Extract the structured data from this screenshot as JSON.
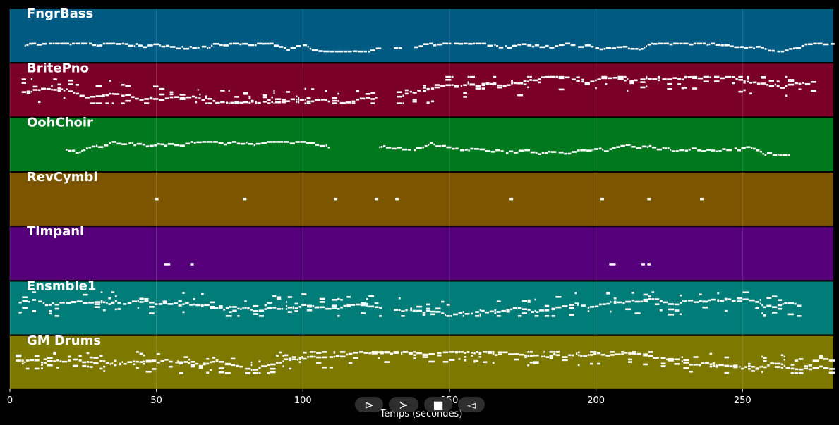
{
  "chart_data": {
    "type": "piano-roll",
    "title": "",
    "xlabel": "Temps (secondes)",
    "ylabel": "",
    "xlim": [
      0,
      281
    ],
    "xticks": [
      0,
      50,
      100,
      150,
      200,
      250
    ],
    "grid": true,
    "tracks": [
      {
        "name": "FngrBass",
        "color": "#005a82",
        "active": [
          [
            5,
            126
          ],
          [
            131,
            133
          ],
          [
            138,
            281
          ]
        ],
        "density": 0.85,
        "pitch_range": [
          0.2,
          0.35
        ],
        "density_note": "sparse single notes"
      },
      {
        "name": "BritePno",
        "color": "#7a0028",
        "active": [
          [
            4,
            125
          ],
          [
            132,
            274
          ]
        ],
        "density": 1.0,
        "pitch_range": [
          0.25,
          0.75
        ]
      },
      {
        "name": "OohChoir",
        "color": "#00781e",
        "active": [
          [
            19,
            109
          ],
          [
            126,
            266
          ]
        ],
        "density": 0.9,
        "pitch_range": [
          0.3,
          0.55
        ]
      },
      {
        "name": "RevCymbl",
        "color": "#7d5500",
        "hits": [
          50,
          80,
          111,
          125,
          132,
          171,
          202,
          218,
          236
        ],
        "pitch": 0.5
      },
      {
        "name": "Timpani",
        "color": "#55007a",
        "hits": [
          53,
          54,
          62,
          205,
          206,
          216,
          218
        ],
        "pitch": 0.3
      },
      {
        "name": "Ensmble1",
        "color": "#007d78",
        "active": [
          [
            3,
            126
          ],
          [
            131,
            270
          ]
        ],
        "density": 1.0,
        "pitch_range": [
          0.35,
          0.8
        ]
      },
      {
        "name": "GM Drums",
        "color": "#7d7800",
        "active": [
          [
            2,
            281
          ]
        ],
        "density": 1.0,
        "pitch_range": [
          0.3,
          0.7
        ]
      }
    ]
  },
  "player": {
    "play_label": "⊳",
    "forward_label": "≻",
    "stop_label": "■",
    "back_label": "◅"
  }
}
